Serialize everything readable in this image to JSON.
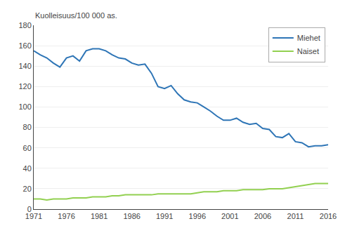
{
  "chart_data": {
    "type": "line",
    "ylabel": "Kuolleisuus/100 000 as.",
    "x": [
      1971,
      1972,
      1973,
      1974,
      1975,
      1976,
      1977,
      1978,
      1979,
      1980,
      1981,
      1982,
      1983,
      1984,
      1985,
      1986,
      1987,
      1988,
      1989,
      1990,
      1991,
      1992,
      1993,
      1994,
      1995,
      1996,
      1997,
      1998,
      1999,
      2000,
      2001,
      2002,
      2003,
      2004,
      2005,
      2006,
      2007,
      2008,
      2009,
      2010,
      2011,
      2012,
      2013,
      2014,
      2015,
      2016
    ],
    "series": [
      {
        "name": "Miehet",
        "color": "#2e75b6",
        "values": [
          155,
          151,
          148,
          143,
          139,
          148,
          150,
          145,
          155,
          157,
          157,
          155,
          151,
          148,
          147,
          143,
          141,
          142,
          133,
          120,
          118,
          121,
          113,
          107,
          105,
          104,
          100,
          96,
          91,
          87,
          87,
          89,
          85,
          83,
          84,
          79,
          78,
          71,
          70,
          74,
          66,
          65,
          61,
          62,
          62,
          63
        ]
      },
      {
        "name": "Naiset",
        "color": "#92d050",
        "values": [
          10,
          10,
          9,
          10,
          10,
          10,
          11,
          11,
          11,
          12,
          12,
          12,
          13,
          13,
          14,
          14,
          14,
          14,
          14,
          15,
          15,
          15,
          15,
          15,
          15,
          16,
          17,
          17,
          17,
          18,
          18,
          18,
          19,
          19,
          19,
          19,
          20,
          20,
          20,
          21,
          22,
          23,
          24,
          25,
          25,
          25
        ]
      }
    ],
    "xlim": [
      1971,
      2016
    ],
    "xticks": [
      1971,
      1976,
      1981,
      1986,
      1991,
      1996,
      2001,
      2006,
      2011,
      2016
    ],
    "ylim": [
      0,
      180
    ],
    "yticks": [
      0,
      20,
      40,
      60,
      80,
      100,
      120,
      140,
      160,
      180
    ],
    "grid": "y",
    "legend": "upper right"
  }
}
